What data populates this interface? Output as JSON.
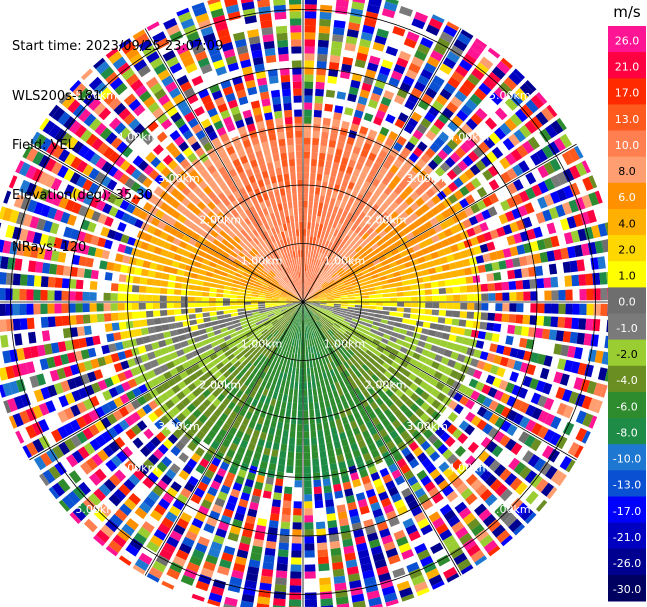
{
  "header": {
    "start_time": "Start time: 2023/09/25 23:07:09",
    "instrument": "WLS200s-181",
    "field": "Field: VEL",
    "elevation": "Elevation(deg): 35.30",
    "nrays": "NRays: 120"
  },
  "chart_data": {
    "type": "heatmap",
    "projection": "polar-ppi",
    "title": "",
    "field": "VEL",
    "units": "m/s",
    "nrays": 120,
    "range_rings_km": [
      1,
      2,
      3,
      4,
      5
    ],
    "range_ring_labels": [
      "1.00km",
      "2.00km",
      "3.00km",
      "4.00km",
      "5.00km"
    ],
    "azimuth_spokes_deg": [
      0,
      30,
      60,
      90,
      120,
      150,
      180,
      210,
      240,
      270,
      300,
      330
    ],
    "max_range_km": 5.4,
    "colorbar": {
      "title": "m/s",
      "ticks": [
        "26.0",
        "21.0",
        "17.0",
        "13.0",
        "10.0",
        "8.0",
        "6.0",
        "4.0",
        "2.0",
        "1.0",
        "0.0",
        "-1.0",
        "-2.0",
        "-4.0",
        "-6.0",
        "-8.0",
        "-10.0",
        "-13.0",
        "-17.0",
        "-21.0",
        "-26.0",
        "-30.0"
      ],
      "colors": [
        "#ff1493",
        "#ff0040",
        "#ff2a00",
        "#ff5a1e",
        "#ff7f50",
        "#ff9e70",
        "#ff9100",
        "#ffb000",
        "#ffd700",
        "#ffff00",
        "#6e6e6e",
        "#7a7a7a",
        "#9acd32",
        "#6b8e23",
        "#2e8b2e",
        "#1e8c46",
        "#1e78d2",
        "#0a50d2",
        "#0000ff",
        "#0000c0",
        "#000090",
        "#000060"
      ]
    },
    "wind_pattern": {
      "description_zones": [
        {
          "azimuth_from": 300,
          "azimuth_to": 60,
          "value": 8.0
        },
        {
          "azimuth_from": 60,
          "azimuth_to": 120,
          "value": 0.0
        },
        {
          "azimuth_from": 120,
          "azimuth_to": 240,
          "value": -6.0
        },
        {
          "azimuth_from": 240,
          "azimuth_to": 300,
          "value": 2.0
        }
      ],
      "noisy_beyond_km": 3.2
    },
    "colors": {
      "background": "#ffffff",
      "grid": "#000000",
      "ring_label": "#ffffff"
    }
  }
}
